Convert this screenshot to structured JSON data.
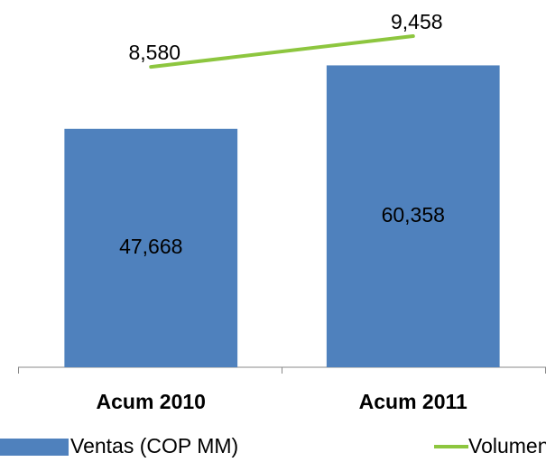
{
  "chart_data": {
    "type": "bar",
    "categories": [
      "Acum 2010",
      "Acum 2011"
    ],
    "series": [
      {
        "name": "Ventas (COP MM)",
        "type": "bar",
        "color": "#4f81bd",
        "values": [
          47668,
          60358
        ],
        "value_labels": [
          "47,668",
          "60,358"
        ]
      },
      {
        "name": "Volumen (Ton)",
        "type": "line",
        "axis": "y2",
        "color": "#8dc63f",
        "values": [
          8580,
          9458
        ],
        "value_labels": [
          "8,580",
          "9,458"
        ]
      }
    ],
    "ylim": [
      0,
      70000
    ],
    "y2lim": [
      0,
      10000
    ]
  }
}
